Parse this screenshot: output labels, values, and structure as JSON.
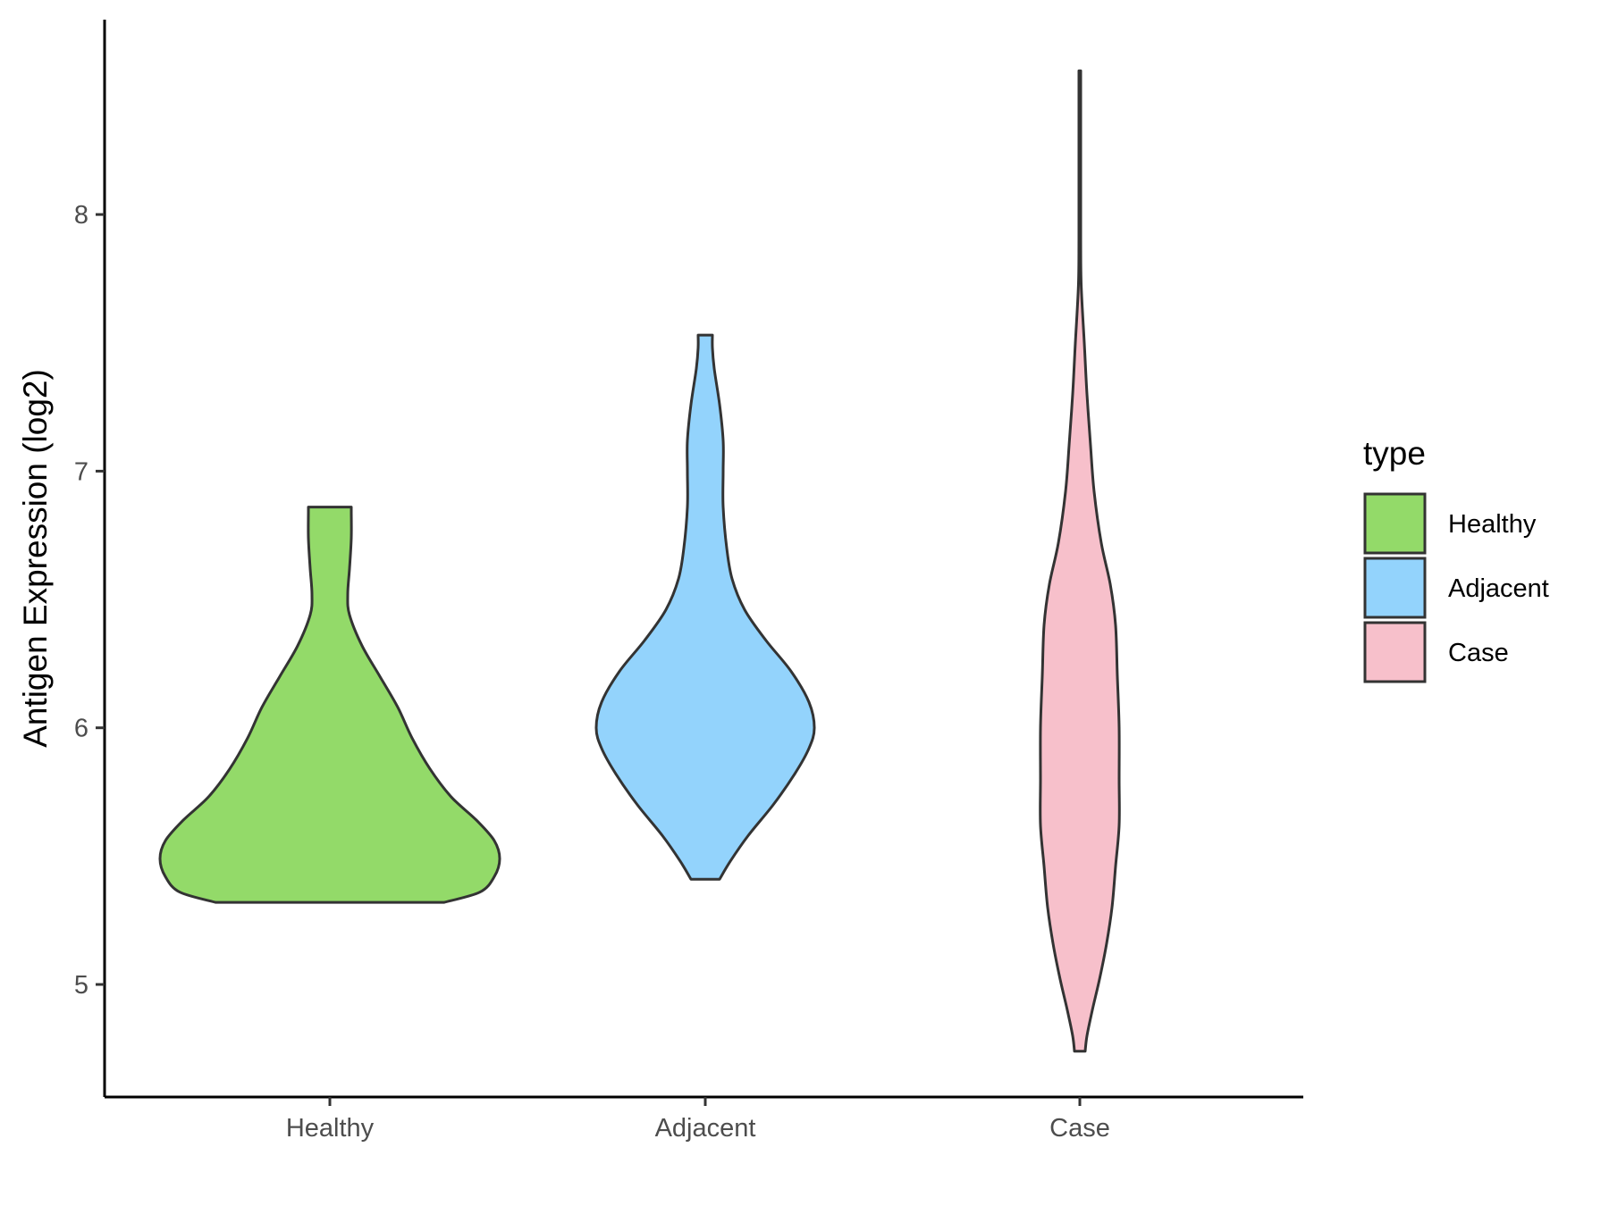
{
  "chart_data": {
    "type": "violin",
    "ylabel": "Antigen Expression (log2)",
    "xlabel": "",
    "categories": [
      "Healthy",
      "Adjacent",
      "Case"
    ],
    "yticks": [
      5,
      6,
      7,
      8
    ],
    "ylim": [
      4.56,
      8.76
    ],
    "grid": false,
    "legend": {
      "title": "type",
      "position": "right",
      "entries": [
        {
          "label": "Healthy",
          "color": "#93DA69"
        },
        {
          "label": "Adjacent",
          "color": "#93D3FC"
        },
        {
          "label": "Case",
          "color": "#F7C0CB"
        }
      ]
    },
    "series": [
      {
        "category": "Healthy",
        "color": "#93DA69",
        "range": [
          5.32,
          6.86
        ],
        "density_profile": [
          [
            5.32,
            0.64
          ],
          [
            5.36,
            0.84
          ],
          [
            5.42,
            0.92
          ],
          [
            5.49,
            0.95
          ],
          [
            5.56,
            0.92
          ],
          [
            5.64,
            0.82
          ],
          [
            5.73,
            0.68
          ],
          [
            5.84,
            0.56
          ],
          [
            5.96,
            0.46
          ],
          [
            6.08,
            0.38
          ],
          [
            6.2,
            0.28
          ],
          [
            6.32,
            0.18
          ],
          [
            6.44,
            0.11
          ],
          [
            6.52,
            0.1
          ],
          [
            6.62,
            0.11
          ],
          [
            6.74,
            0.12
          ],
          [
            6.84,
            0.12
          ],
          [
            6.86,
            0.12
          ]
        ]
      },
      {
        "category": "Adjacent",
        "color": "#93D3FC",
        "range": [
          5.41,
          7.53
        ],
        "density_profile": [
          [
            5.41,
            0.08
          ],
          [
            5.48,
            0.14
          ],
          [
            5.58,
            0.24
          ],
          [
            5.7,
            0.38
          ],
          [
            5.82,
            0.5
          ],
          [
            5.92,
            0.58
          ],
          [
            6.0,
            0.61
          ],
          [
            6.1,
            0.58
          ],
          [
            6.22,
            0.48
          ],
          [
            6.34,
            0.34
          ],
          [
            6.46,
            0.22
          ],
          [
            6.58,
            0.15
          ],
          [
            6.7,
            0.12
          ],
          [
            6.86,
            0.1
          ],
          [
            7.0,
            0.1
          ],
          [
            7.12,
            0.1
          ],
          [
            7.26,
            0.08
          ],
          [
            7.4,
            0.05
          ],
          [
            7.48,
            0.04
          ],
          [
            7.53,
            0.04
          ]
        ]
      },
      {
        "category": "Case",
        "color": "#F7C0CB",
        "range": [
          4.74,
          8.56
        ],
        "density_profile": [
          [
            4.74,
            0.03
          ],
          [
            4.8,
            0.04
          ],
          [
            4.9,
            0.07
          ],
          [
            5.02,
            0.11
          ],
          [
            5.16,
            0.15
          ],
          [
            5.3,
            0.18
          ],
          [
            5.46,
            0.2
          ],
          [
            5.62,
            0.22
          ],
          [
            5.8,
            0.22
          ],
          [
            6.0,
            0.22
          ],
          [
            6.2,
            0.21
          ],
          [
            6.4,
            0.2
          ],
          [
            6.56,
            0.17
          ],
          [
            6.72,
            0.12
          ],
          [
            6.92,
            0.08
          ],
          [
            7.1,
            0.06
          ],
          [
            7.3,
            0.04
          ],
          [
            7.5,
            0.025
          ],
          [
            7.72,
            0.008
          ],
          [
            7.9,
            0.005
          ],
          [
            8.2,
            0.005
          ],
          [
            8.56,
            0.005
          ]
        ]
      }
    ]
  }
}
